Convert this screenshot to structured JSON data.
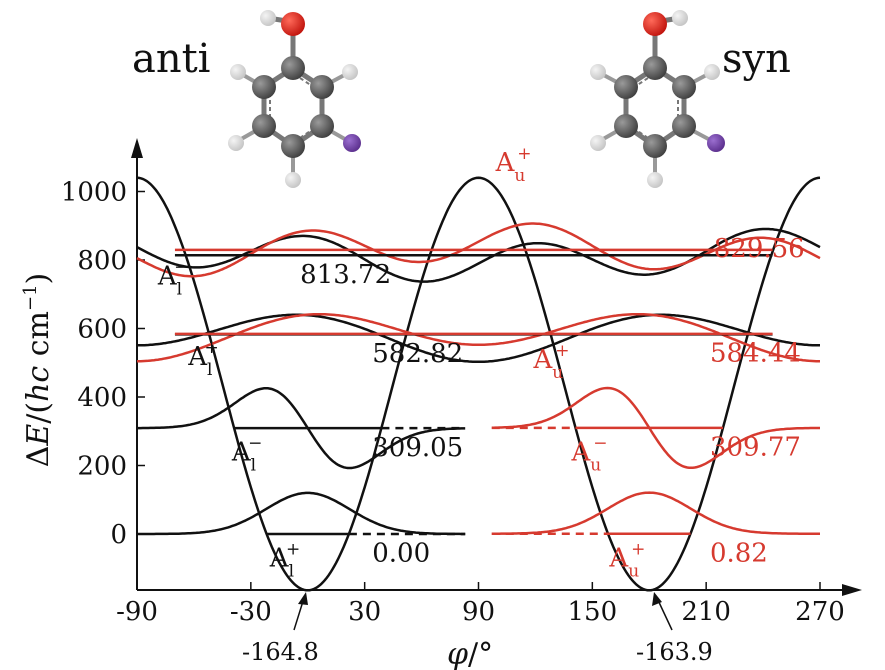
{
  "labels": {
    "anti": "anti",
    "syn": "syn",
    "ylabel_delta": "Δ",
    "ylabel_E": "E",
    "ylabel_rest": "/(",
    "ylabel_hc": "hc",
    "ylabel_cm": " cm",
    "ylabel_exp": "−1",
    "ylabel_close": ")",
    "xlabel_phi": "φ",
    "xlabel_unit": "/°",
    "A_letter": "A"
  },
  "colors": {
    "black": "#111111",
    "red": "#d63a2f",
    "oxygen": "#e0201a",
    "carbon": "#5a5a5a",
    "hydrogen": "#d8d8d8",
    "iodine": "#6f3fa3"
  },
  "chart_data": {
    "type": "line",
    "xlim": [
      -90,
      270
    ],
    "ylim": [
      -160,
      1050
    ],
    "x_ticks": [
      -90,
      -30,
      30,
      90,
      150,
      210,
      270
    ],
    "x_tick_labels": [
      "-90",
      "-30",
      "30",
      "90",
      "150",
      "210",
      "270"
    ],
    "y_ticks": [
      0,
      200,
      400,
      600,
      800,
      1000
    ],
    "y_tick_labels": [
      "0",
      "200",
      "400",
      "600",
      "800",
      "1000"
    ],
    "potential": {
      "anti_minimum": {
        "x": 0,
        "y": -164.8,
        "label": "-164.8"
      },
      "syn_minimum": {
        "x": 180,
        "y": -163.9,
        "label": "-163.9"
      },
      "barrier_max": 1040
    },
    "levels": [
      {
        "side": "anti",
        "value": 0.0,
        "label": "0.00",
        "color": "black",
        "sym_sup": "+",
        "sym_sub": "l"
      },
      {
        "side": "anti",
        "value": 309.05,
        "label": "309.05",
        "color": "black",
        "sym_sup": "−",
        "sym_sub": "l"
      },
      {
        "side": "anti",
        "value": 582.82,
        "label": "582.82",
        "color": "black",
        "sym_sup": "+",
        "sym_sub": "l"
      },
      {
        "side": "anti",
        "value": 813.72,
        "label": "813.72",
        "color": "black",
        "sym_sup": "−",
        "sym_sub": "l"
      },
      {
        "side": "syn",
        "value": 0.82,
        "label": "0.82",
        "color": "red",
        "sym_sup": "+",
        "sym_sub": "u"
      },
      {
        "side": "syn",
        "value": 309.77,
        "label": "309.77",
        "color": "red",
        "sym_sup": "−",
        "sym_sub": "u"
      },
      {
        "side": "syn",
        "value": 584.44,
        "label": "584.44",
        "color": "red",
        "sym_sup": "+",
        "sym_sub": "u"
      },
      {
        "side": "syn",
        "value": 829.56,
        "label": "829.56",
        "color": "red",
        "sym_sup": "+",
        "sym_sub": "u"
      }
    ]
  }
}
